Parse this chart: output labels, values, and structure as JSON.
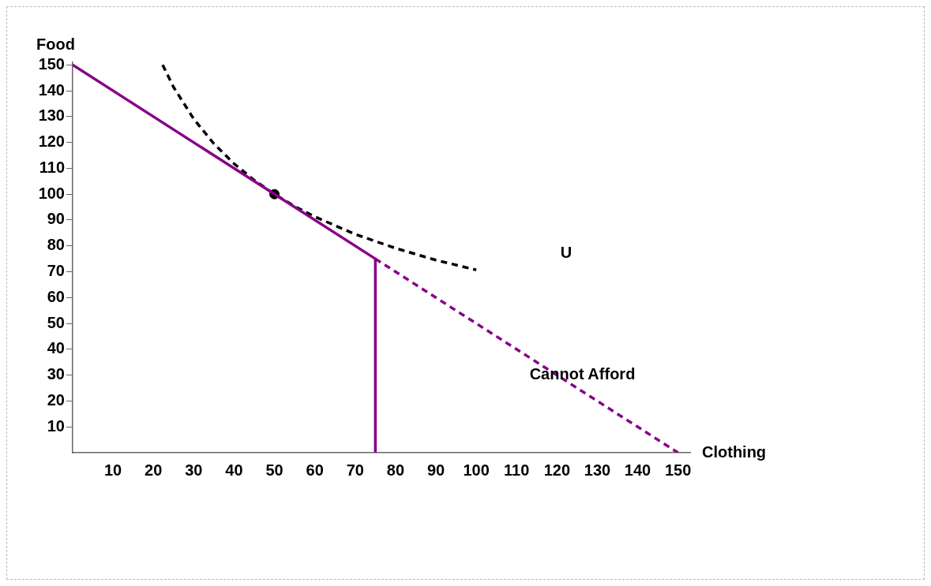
{
  "chart_data": {
    "type": "line",
    "xlabel": "Clothing",
    "ylabel": "Food",
    "xlim": [
      0,
      153
    ],
    "ylim": [
      0,
      151
    ],
    "xticks": [
      10,
      20,
      30,
      40,
      50,
      60,
      70,
      80,
      90,
      100,
      110,
      120,
      130,
      140,
      150
    ],
    "yticks": [
      10,
      20,
      30,
      40,
      50,
      60,
      70,
      80,
      90,
      100,
      110,
      120,
      130,
      140,
      150
    ],
    "grid": false,
    "legend": false,
    "marker": "none",
    "series": [
      {
        "type": "line",
        "color": "#880088",
        "line_style": "solid",
        "x": [
          0,
          75,
          75
        ],
        "values": [
          150,
          75,
          0
        ]
      },
      {
        "type": "line",
        "color": "#880088",
        "line_style": "dashed",
        "x": [
          75,
          150
        ],
        "values": [
          75,
          0
        ]
      },
      {
        "type": "line",
        "color": "#000000",
        "line_style": "dashed",
        "x": [
          22.3,
          25,
          30,
          35,
          40,
          45,
          50,
          55,
          60,
          70,
          80,
          90,
          100
        ],
        "values": [
          150,
          141.4,
          129.1,
          119.5,
          111.8,
          105.4,
          100,
          95.3,
          91.3,
          84.5,
          79.1,
          74.5,
          70.7
        ]
      },
      {
        "type": "scatter",
        "color": "#000000",
        "marker": "circle",
        "x": [
          50
        ],
        "values": [
          100
        ]
      }
    ],
    "annotations": [
      "U",
      "Cannot Afford"
    ]
  }
}
